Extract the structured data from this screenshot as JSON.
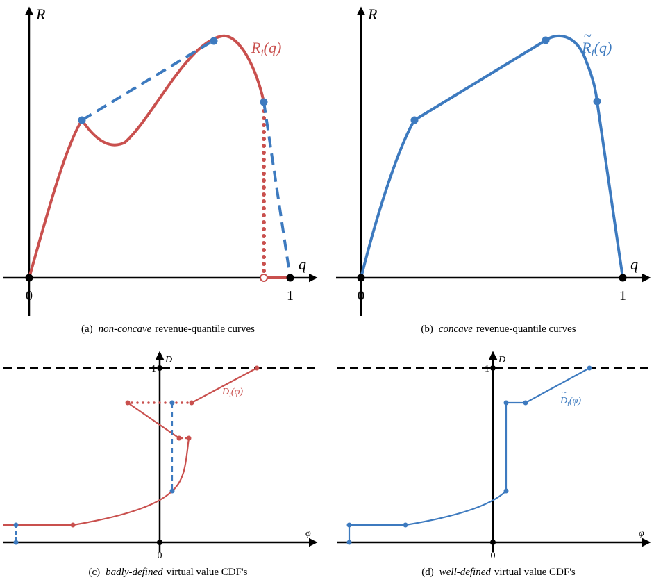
{
  "panels": [
    {
      "caption": {
        "label": "(a)",
        "emphasis": "non-concave",
        "text": "revenue-quantile curves"
      },
      "axes": {
        "y": "R",
        "x": "q",
        "ticks": [
          "0",
          "1"
        ]
      },
      "curve_label": {
        "base": "R",
        "sub": "i",
        "arg": "(q)"
      }
    },
    {
      "caption": {
        "label": "(b)",
        "emphasis": "concave",
        "text": "revenue-quantile curves"
      },
      "axes": {
        "y": "R",
        "x": "q",
        "ticks": [
          "0",
          "1"
        ]
      },
      "curve_label": {
        "accent": "~",
        "base": "R",
        "sub": "i",
        "arg": "(q)"
      }
    },
    {
      "caption": {
        "label": "(c)",
        "emphasis": "badly-defined",
        "text": "virtual value CDF's"
      },
      "axes": {
        "y": "D",
        "x": "φ",
        "ticks": [
          "0",
          "1"
        ]
      },
      "curve_label": {
        "base": "D",
        "sub": "i",
        "arg": "(φ)"
      }
    },
    {
      "caption": {
        "label": "(d)",
        "emphasis": "well-defined",
        "text": "virtual value CDF's"
      },
      "axes": {
        "y": "D",
        "x": "φ",
        "ticks": [
          "0",
          "1"
        ]
      },
      "curve_label": {
        "accent": "~",
        "base": "D",
        "sub": "i",
        "arg": "(φ)"
      }
    }
  ]
}
